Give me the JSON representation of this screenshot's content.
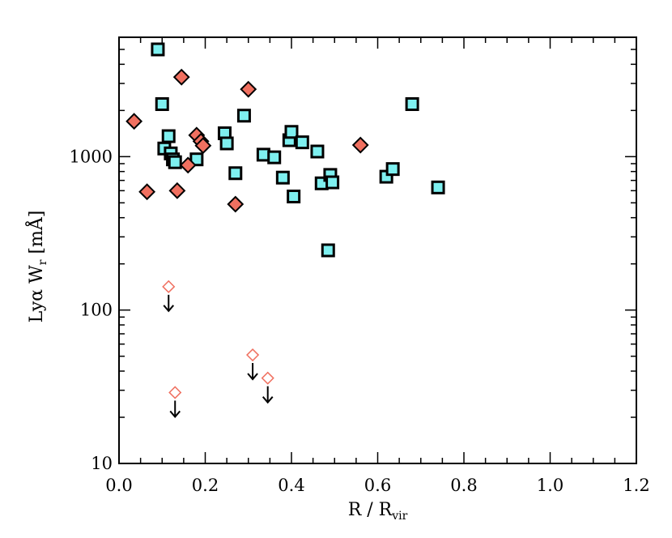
{
  "chart_data": {
    "type": "scatter",
    "title": "",
    "xlabel": {
      "main": "R / R",
      "sub": "vir"
    },
    "ylabel": {
      "main": "Lyα W",
      "sub": "r",
      "unit": " [mÅ]"
    },
    "xlim": [
      0.0,
      1.2
    ],
    "ylim": [
      10,
      6000
    ],
    "yscale": "log",
    "grid": false,
    "legend": "none",
    "x_ticks": [
      "0.0",
      "0.2",
      "0.4",
      "0.6",
      "0.8",
      "1.0",
      "1.2"
    ],
    "y_ticks": [
      "10",
      "100",
      "1000"
    ],
    "series": [
      {
        "marker": "square",
        "color": "#7ef0f0",
        "points": [
          [
            0.09,
            5000
          ],
          [
            0.1,
            2200
          ],
          [
            0.105,
            1130
          ],
          [
            0.115,
            1360
          ],
          [
            0.12,
            1050
          ],
          [
            0.125,
            960
          ],
          [
            0.13,
            920
          ],
          [
            0.18,
            960
          ],
          [
            0.245,
            1420
          ],
          [
            0.25,
            1220
          ],
          [
            0.27,
            780
          ],
          [
            0.29,
            1850
          ],
          [
            0.335,
            1030
          ],
          [
            0.36,
            990
          ],
          [
            0.38,
            730
          ],
          [
            0.395,
            1280
          ],
          [
            0.4,
            1450
          ],
          [
            0.405,
            550
          ],
          [
            0.425,
            1240
          ],
          [
            0.46,
            1080
          ],
          [
            0.47,
            670
          ],
          [
            0.485,
            245
          ],
          [
            0.49,
            760
          ],
          [
            0.495,
            680
          ],
          [
            0.62,
            740
          ],
          [
            0.635,
            830
          ],
          [
            0.68,
            2200
          ],
          [
            0.74,
            630
          ]
        ]
      },
      {
        "marker": "diamond",
        "color": "#f07060",
        "points": [
          [
            0.035,
            1700
          ],
          [
            0.065,
            590
          ],
          [
            0.135,
            600
          ],
          [
            0.145,
            3300
          ],
          [
            0.16,
            880
          ],
          [
            0.18,
            1380
          ],
          [
            0.19,
            1260
          ],
          [
            0.195,
            1180
          ],
          [
            0.27,
            490
          ],
          [
            0.3,
            2750
          ],
          [
            0.56,
            1190
          ]
        ]
      },
      {
        "marker": "open-diamond-upper-limit",
        "color": "#f07060",
        "points": [
          [
            0.115,
            142
          ],
          [
            0.13,
            29
          ],
          [
            0.31,
            51
          ],
          [
            0.345,
            36
          ]
        ]
      }
    ]
  }
}
